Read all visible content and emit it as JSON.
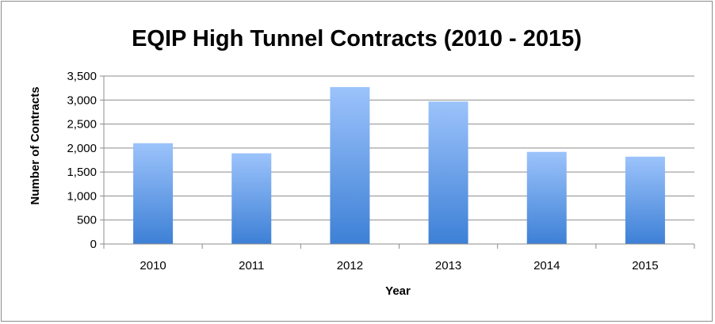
{
  "chart_data": {
    "type": "bar",
    "title": "EQIP High Tunnel Contracts (2010 - 2015)",
    "xlabel": "Year",
    "ylabel": "Number of Contracts",
    "categories": [
      "2010",
      "2011",
      "2012",
      "2013",
      "2014",
      "2015"
    ],
    "values": [
      2100,
      1890,
      3270,
      2970,
      1920,
      1820
    ],
    "ylim": [
      0,
      3500
    ],
    "yticks": [
      0,
      500,
      1000,
      1500,
      2000,
      2500,
      3000,
      3500
    ],
    "ytick_labels": [
      "0",
      "500",
      "1,000",
      "1,500",
      "2,000",
      "2,500",
      "3,000",
      "3,500"
    ],
    "grid": true,
    "legend": "none",
    "colors": {
      "bar_top": "#9cc3fb",
      "bar_bottom": "#3d80d6",
      "grid": "#8c8c8c",
      "axis": "#8c8c8c"
    }
  }
}
